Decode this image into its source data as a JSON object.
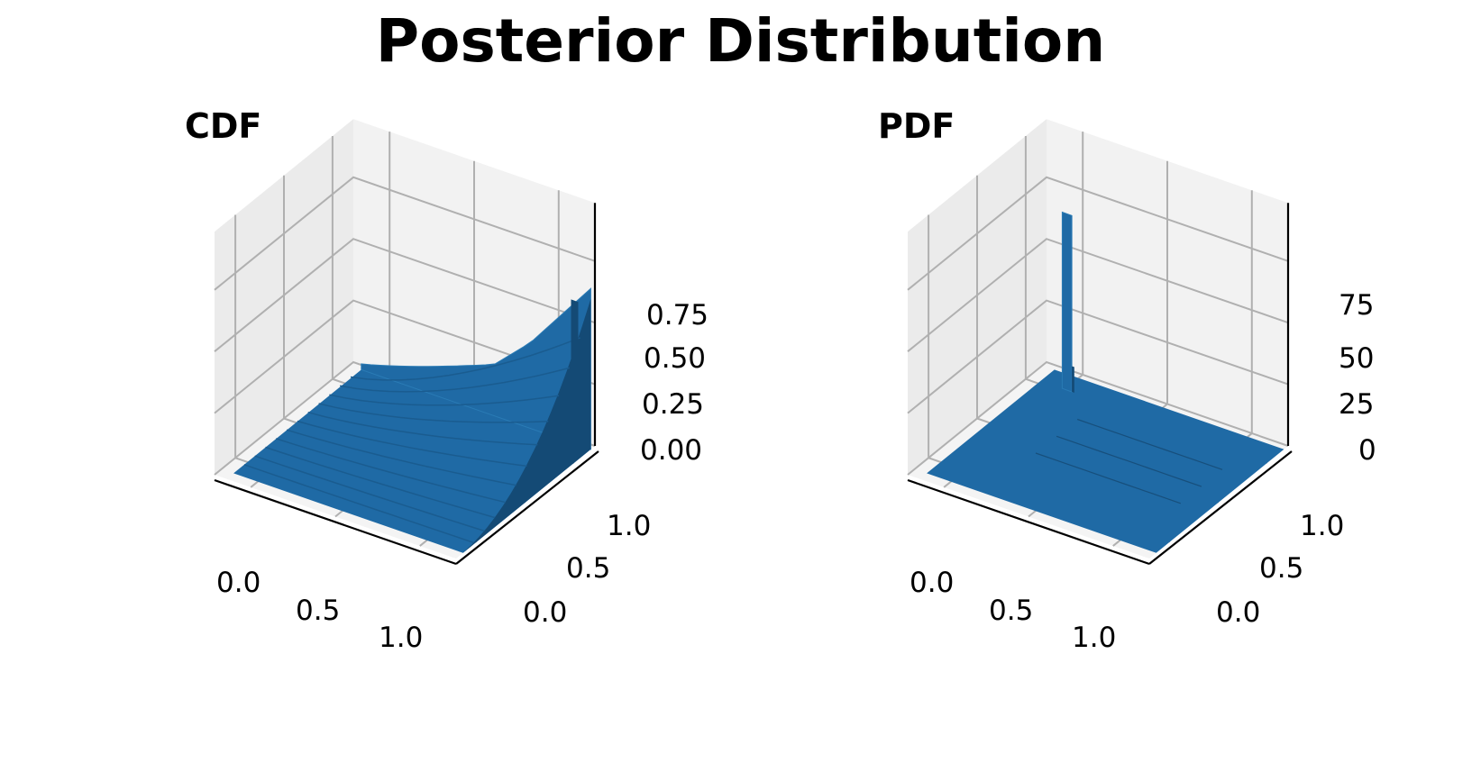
{
  "figure": {
    "title": "Posterior Distribution"
  },
  "style": {
    "bar_color": "#1f6aa5",
    "bar_dark": "#144a75",
    "pane_color": "#f2f2f2",
    "grid_color": "#b0b0b0"
  },
  "chart_data": [
    {
      "type": "bar3d",
      "title": "CDF",
      "x_ticks": [
        "0.0",
        "0.5",
        "1.0"
      ],
      "y_ticks": [
        "0.0",
        "0.5",
        "1.0"
      ],
      "z_ticks": [
        "0.00",
        "0.25",
        "0.50",
        "0.75"
      ],
      "xlim": [
        -0.15,
        1.15
      ],
      "ylim": [
        -0.15,
        1.15
      ],
      "zlim": [
        0,
        1.0
      ],
      "grid": true,
      "surface": "cdf",
      "approx_max": 0.97
    },
    {
      "type": "bar3d",
      "title": "PDF",
      "x_ticks": [
        "0.0",
        "0.5",
        "1.0"
      ],
      "y_ticks": [
        "0.0",
        "0.5",
        "1.0"
      ],
      "z_ticks": [
        "0",
        "25",
        "50",
        "75"
      ],
      "xlim": [
        -0.15,
        1.15
      ],
      "ylim": [
        -0.15,
        1.15
      ],
      "zlim": [
        0,
        90
      ],
      "grid": true,
      "surface": "pdf",
      "peak": {
        "x": 0.0,
        "y": 1.0,
        "value": 90
      },
      "approx_max": 90
    }
  ]
}
